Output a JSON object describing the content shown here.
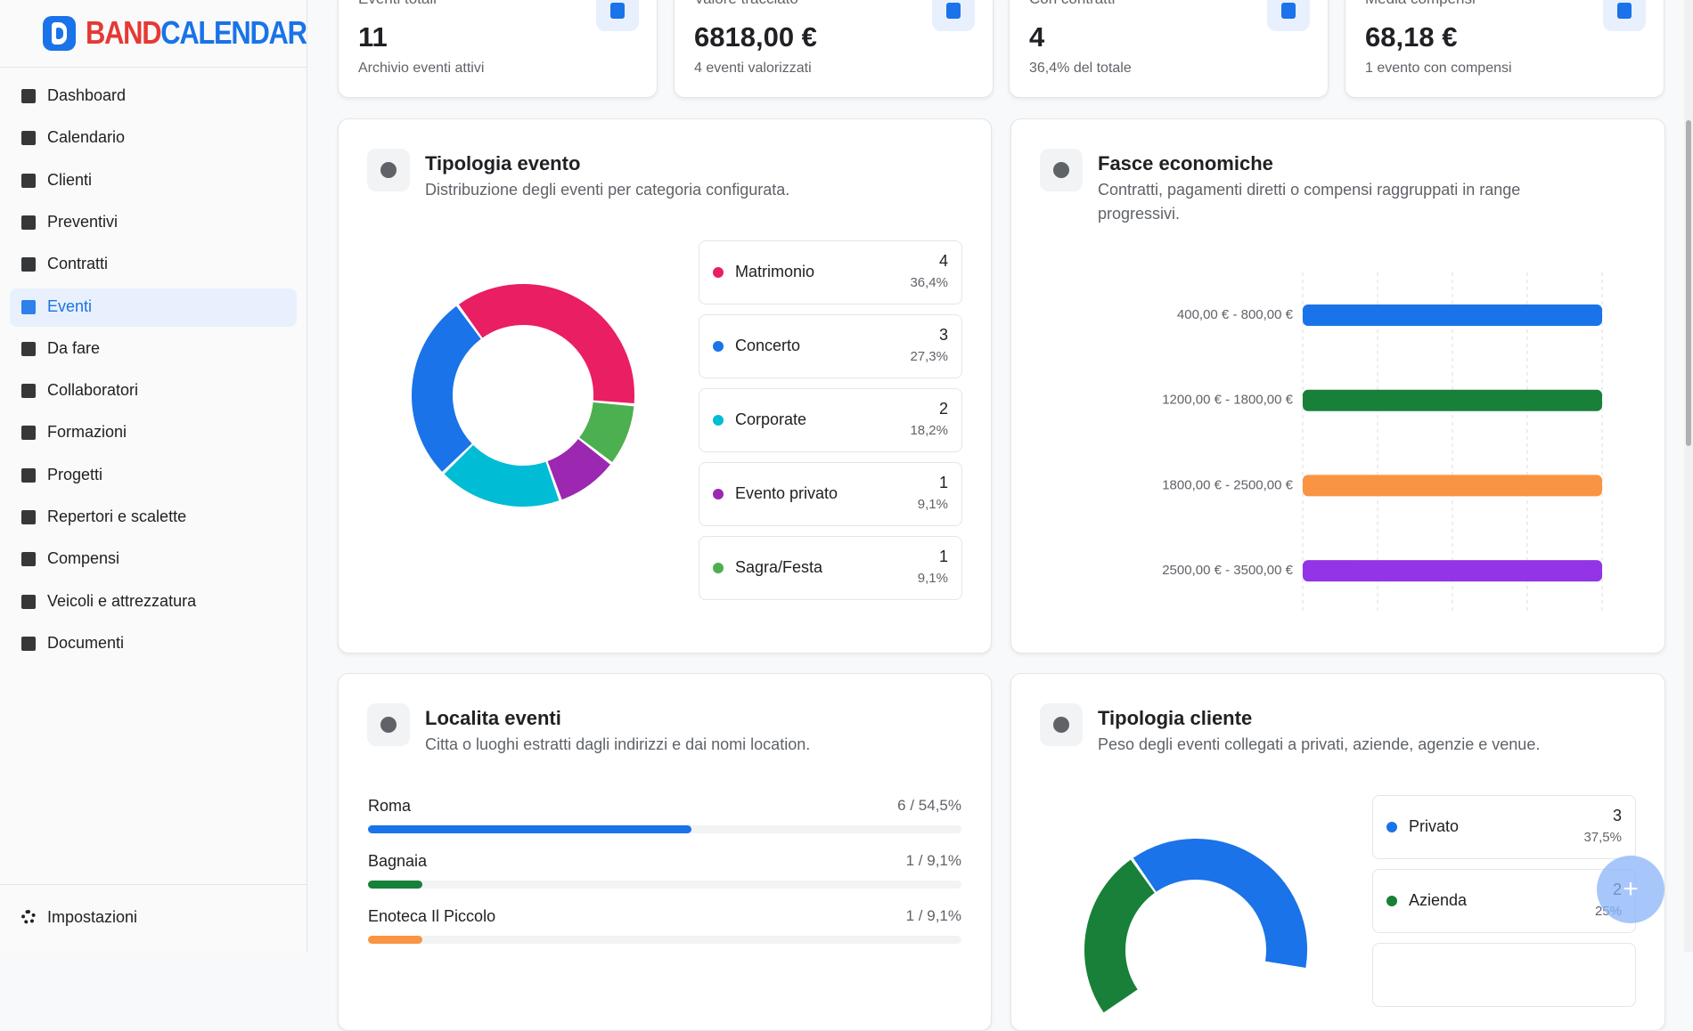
{
  "brand": {
    "first": "BAND",
    "second": "CALENDAR"
  },
  "nav": {
    "items": [
      {
        "label": "Dashboard"
      },
      {
        "label": "Calendario"
      },
      {
        "label": "Clienti"
      },
      {
        "label": "Preventivi"
      },
      {
        "label": "Contratti"
      },
      {
        "label": "Eventi",
        "active": true
      },
      {
        "label": "Da fare"
      },
      {
        "label": "Collaboratori"
      },
      {
        "label": "Formazioni"
      },
      {
        "label": "Progetti"
      },
      {
        "label": "Repertori e scalette"
      },
      {
        "label": "Compensi"
      },
      {
        "label": "Veicoli e attrezzatura"
      },
      {
        "label": "Documenti"
      }
    ],
    "settings": "Impostazioni"
  },
  "stats": [
    {
      "label": "Eventi totali",
      "value": "11",
      "note": "Archivio eventi attivi"
    },
    {
      "label": "Valore tracciato",
      "value": "6818,00 €",
      "note": "4 eventi valorizzati"
    },
    {
      "label": "Con contratti",
      "value": "4",
      "note": "36,4% del totale"
    },
    {
      "label": "Media compensi",
      "value": "68,18 €",
      "note": "1 evento con compensi"
    }
  ],
  "panels": [
    {
      "title": "Tipologia evento",
      "subtitle": "Distribuzione degli eventi per categoria configurata.",
      "chart": {
        "type": "donut",
        "series": [
          {
            "name": "Matrimonio",
            "color": "#e91e63",
            "value": 4,
            "percent_label": "36,4%"
          },
          {
            "name": "Concerto",
            "color": "#1a73e8",
            "value": 3,
            "percent_label": "27,3%"
          },
          {
            "name": "Corporate",
            "color": "#00bcd4",
            "value": 2,
            "percent_label": "18,2%"
          },
          {
            "name": "Evento privato",
            "color": "#9c27b0",
            "value": 1,
            "percent_label": "9,1%"
          },
          {
            "name": "Sagra/Festa",
            "color": "#4caf50",
            "value": 1,
            "percent_label": "9,1%"
          }
        ]
      }
    },
    {
      "title": "Fasce economiche",
      "subtitle": "Contratti, pagamenti diretti o compensi raggruppati in range progressivi.",
      "chart": {
        "type": "hbar",
        "xlim": [
          0,
          1
        ],
        "bars": [
          {
            "label": "400,00 € - 800,00 €",
            "value": 1,
            "color": "#1a73e8"
          },
          {
            "label": "1200,00 € - 1800,00 €",
            "value": 1,
            "color": "#188038"
          },
          {
            "label": "1800,00 € - 2500,00 €",
            "value": 1,
            "color": "#fa9442"
          },
          {
            "label": "2500,00 € - 3500,00 €",
            "value": 1,
            "color": "#9334e6"
          }
        ]
      }
    },
    {
      "title": "Localita eventi",
      "subtitle": "Citta o luoghi estratti dagli indirizzi e dai nomi location.",
      "chart": {
        "type": "progress",
        "rows": [
          {
            "label": "Roma",
            "value_label": "6 / 54,5%",
            "percent": 54.5,
            "color": "#1a73e8"
          },
          {
            "label": "Bagnaia",
            "value_label": "1 / 9,1%",
            "percent": 9.1,
            "color": "#188038"
          },
          {
            "label": "Enoteca Il Piccolo",
            "value_label": "1 / 9,1%",
            "percent": 9.1,
            "color": "#fa9442"
          }
        ]
      }
    },
    {
      "title": "Tipologia cliente",
      "subtitle": "Peso degli eventi collegati a privati, aziende, agenzie e venue.",
      "chart": {
        "type": "donut-percent",
        "series": [
          {
            "name": "Privato",
            "color": "#1a73e8",
            "value": 3,
            "percent": 37.5,
            "percent_label": "37,5%"
          },
          {
            "name": "Azienda",
            "color": "#188038",
            "value": 2,
            "percent": 25,
            "percent_label": "25%"
          }
        ]
      }
    }
  ]
}
